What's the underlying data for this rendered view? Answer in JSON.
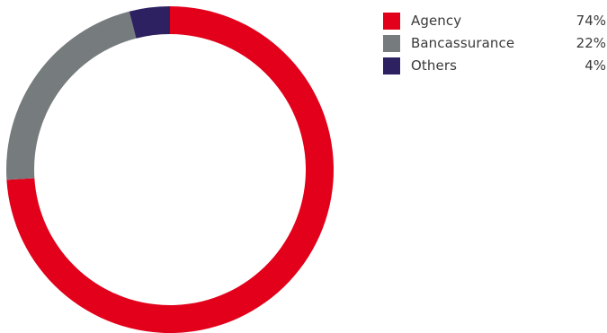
{
  "chart_data": {
    "type": "pie",
    "variant": "donut",
    "categories": [
      "Agency",
      "Bancassurance",
      "Others"
    ],
    "values": [
      74,
      22,
      4
    ],
    "unit": "%",
    "value_labels": [
      "74%",
      "22%",
      "4%"
    ],
    "colors": [
      "#e2001a",
      "#767b7d",
      "#2d2162"
    ],
    "start_direction": "12 o'clock",
    "winding": "clockwise",
    "legend_placement": "top-right"
  },
  "legend": {
    "items": [
      {
        "label": "Agency",
        "value": "74%",
        "color": "#e2001a"
      },
      {
        "label": "Bancassurance",
        "value": "22%",
        "color": "#767b7d"
      },
      {
        "label": "Others",
        "value": "4%",
        "color": "#2d2162"
      }
    ]
  }
}
